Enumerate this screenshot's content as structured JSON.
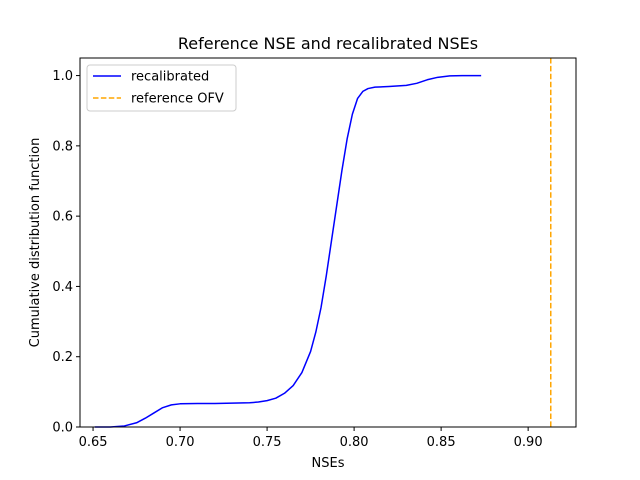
{
  "chart_data": {
    "type": "line",
    "title": "Reference NSE and recalibrated NSEs",
    "xlabel": "NSEs",
    "ylabel": "Cumulative distribution function",
    "xlim": [
      0.6425,
      0.9275
    ],
    "ylim": [
      0.0,
      1.05
    ],
    "xticks": [
      "0.65",
      "0.70",
      "0.75",
      "0.80",
      "0.85",
      "0.90"
    ],
    "yticks": [
      "0.0",
      "0.2",
      "0.4",
      "0.6",
      "0.8",
      "1.0"
    ],
    "grid": false,
    "legend_position": "top-left",
    "series": [
      {
        "name": "recalibrated",
        "color": "#0000ff",
        "style": "solid",
        "points": [
          [
            0.651,
            0.0
          ],
          [
            0.66,
            0.0
          ],
          [
            0.668,
            0.003
          ],
          [
            0.675,
            0.012
          ],
          [
            0.68,
            0.025
          ],
          [
            0.685,
            0.04
          ],
          [
            0.69,
            0.055
          ],
          [
            0.695,
            0.063
          ],
          [
            0.7,
            0.066
          ],
          [
            0.71,
            0.067
          ],
          [
            0.72,
            0.067
          ],
          [
            0.73,
            0.068
          ],
          [
            0.74,
            0.069
          ],
          [
            0.745,
            0.071
          ],
          [
            0.75,
            0.075
          ],
          [
            0.755,
            0.082
          ],
          [
            0.76,
            0.096
          ],
          [
            0.765,
            0.118
          ],
          [
            0.77,
            0.155
          ],
          [
            0.775,
            0.215
          ],
          [
            0.778,
            0.27
          ],
          [
            0.781,
            0.34
          ],
          [
            0.784,
            0.43
          ],
          [
            0.787,
            0.53
          ],
          [
            0.79,
            0.63
          ],
          [
            0.793,
            0.73
          ],
          [
            0.796,
            0.82
          ],
          [
            0.799,
            0.89
          ],
          [
            0.802,
            0.935
          ],
          [
            0.805,
            0.955
          ],
          [
            0.808,
            0.963
          ],
          [
            0.812,
            0.967
          ],
          [
            0.82,
            0.969
          ],
          [
            0.83,
            0.972
          ],
          [
            0.836,
            0.978
          ],
          [
            0.842,
            0.988
          ],
          [
            0.848,
            0.995
          ],
          [
            0.855,
            0.999
          ],
          [
            0.862,
            1.0
          ],
          [
            0.873,
            1.0
          ]
        ]
      },
      {
        "name": "reference OFV",
        "color": "#ffa500",
        "style": "dashed",
        "x": 0.913
      }
    ]
  }
}
